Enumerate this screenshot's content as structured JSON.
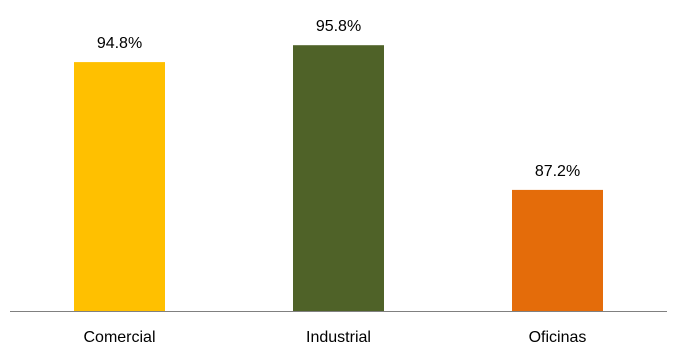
{
  "chart_data": {
    "type": "bar",
    "categories": [
      "Comercial",
      "Industrial",
      "Oficinas"
    ],
    "values": [
      94.8,
      95.8,
      87.2
    ],
    "data_labels": [
      "94.8%",
      "95.8%",
      "87.2%"
    ],
    "colors": [
      "#FFC000",
      "#4F6228",
      "#E46C0A"
    ],
    "axis_color": "#808080",
    "ylim": [
      80,
      97.3
    ],
    "title": "",
    "xlabel": "",
    "ylabel": "",
    "grid": false,
    "legend": "none"
  }
}
